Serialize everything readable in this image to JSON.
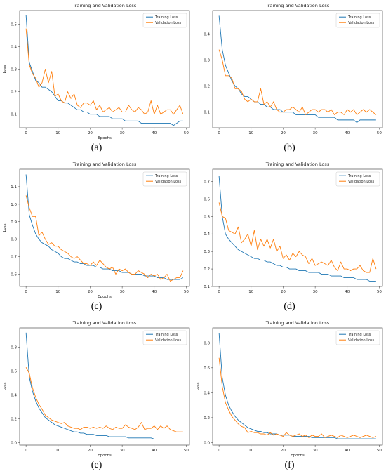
{
  "chart_data": [
    {
      "type": "line",
      "caption": "(a)",
      "title": "Training and Validation Loss",
      "xlabel": "Epochs",
      "ylabel": "Loss",
      "xlim": [
        -2,
        51
      ],
      "ylim": [
        0.04,
        0.56
      ],
      "xticks": [
        0,
        10,
        20,
        30,
        40,
        50
      ],
      "yticks": [
        0.1,
        0.2,
        0.3,
        0.4,
        0.5
      ],
      "ytick_labels": [
        "0.1",
        "0.2",
        "0.3",
        "0.4",
        "0.5"
      ],
      "legend": "top-right",
      "x": [
        0,
        1,
        2,
        3,
        4,
        5,
        6,
        7,
        8,
        9,
        10,
        11,
        12,
        13,
        14,
        15,
        16,
        17,
        18,
        19,
        20,
        21,
        22,
        23,
        24,
        25,
        26,
        27,
        28,
        29,
        30,
        31,
        32,
        33,
        34,
        35,
        36,
        37,
        38,
        39,
        40,
        41,
        42,
        43,
        44,
        45,
        46,
        47,
        48,
        49
      ],
      "series": [
        {
          "name": "Training Loss",
          "color": "#1f77b4",
          "values": [
            0.54,
            0.33,
            0.29,
            0.25,
            0.24,
            0.22,
            0.22,
            0.21,
            0.2,
            0.18,
            0.16,
            0.16,
            0.15,
            0.15,
            0.14,
            0.13,
            0.12,
            0.12,
            0.11,
            0.11,
            0.1,
            0.1,
            0.1,
            0.09,
            0.09,
            0.09,
            0.09,
            0.08,
            0.08,
            0.08,
            0.08,
            0.07,
            0.07,
            0.07,
            0.07,
            0.07,
            0.06,
            0.06,
            0.06,
            0.06,
            0.06,
            0.06,
            0.06,
            0.06,
            0.06,
            0.06,
            0.05,
            0.06,
            0.07,
            0.07
          ]
        },
        {
          "name": "Validation Loss",
          "color": "#ff7f0e",
          "values": [
            0.48,
            0.32,
            0.28,
            0.26,
            0.22,
            0.24,
            0.3,
            0.24,
            0.29,
            0.18,
            0.19,
            0.16,
            0.15,
            0.2,
            0.17,
            0.19,
            0.14,
            0.13,
            0.15,
            0.15,
            0.14,
            0.16,
            0.12,
            0.14,
            0.11,
            0.12,
            0.13,
            0.11,
            0.12,
            0.13,
            0.11,
            0.11,
            0.14,
            0.12,
            0.11,
            0.13,
            0.12,
            0.1,
            0.11,
            0.16,
            0.1,
            0.14,
            0.1,
            0.11,
            0.12,
            0.12,
            0.1,
            0.12,
            0.14,
            0.1
          ]
        }
      ]
    },
    {
      "type": "line",
      "caption": "(b)",
      "title": "Training and Validation Loss",
      "xlabel": "",
      "ylabel": "",
      "xlim": [
        -2,
        51
      ],
      "ylim": [
        0.04,
        0.49
      ],
      "xticks": [
        0,
        10,
        20,
        30,
        40,
        50
      ],
      "yticks": [
        0.1,
        0.2,
        0.3,
        0.4
      ],
      "ytick_labels": [
        "0.1",
        "0.2",
        "0.3",
        "0.4"
      ],
      "legend": "top-right",
      "x": [
        0,
        1,
        2,
        3,
        4,
        5,
        6,
        7,
        8,
        9,
        10,
        11,
        12,
        13,
        14,
        15,
        16,
        17,
        18,
        19,
        20,
        21,
        22,
        23,
        24,
        25,
        26,
        27,
        28,
        29,
        30,
        31,
        32,
        33,
        34,
        35,
        36,
        37,
        38,
        39,
        40,
        41,
        42,
        43,
        44,
        45,
        46,
        47,
        48,
        49
      ],
      "series": [
        {
          "name": "Training Loss",
          "color": "#1f77b4",
          "values": [
            0.47,
            0.34,
            0.28,
            0.25,
            0.22,
            0.2,
            0.19,
            0.17,
            0.16,
            0.16,
            0.15,
            0.14,
            0.14,
            0.13,
            0.13,
            0.12,
            0.12,
            0.11,
            0.11,
            0.11,
            0.1,
            0.1,
            0.1,
            0.1,
            0.09,
            0.09,
            0.09,
            0.09,
            0.09,
            0.09,
            0.09,
            0.08,
            0.08,
            0.08,
            0.08,
            0.08,
            0.08,
            0.07,
            0.07,
            0.07,
            0.07,
            0.07,
            0.07,
            0.06,
            0.07,
            0.07,
            0.07,
            0.07,
            0.07,
            0.07
          ]
        },
        {
          "name": "Validation Loss",
          "color": "#ff7f0e",
          "values": [
            0.34,
            0.3,
            0.24,
            0.24,
            0.23,
            0.19,
            0.19,
            0.18,
            0.15,
            0.14,
            0.15,
            0.14,
            0.14,
            0.19,
            0.13,
            0.14,
            0.12,
            0.14,
            0.11,
            0.1,
            0.1,
            0.11,
            0.11,
            0.12,
            0.11,
            0.1,
            0.12,
            0.09,
            0.1,
            0.11,
            0.11,
            0.1,
            0.11,
            0.11,
            0.1,
            0.11,
            0.09,
            0.1,
            0.1,
            0.09,
            0.11,
            0.1,
            0.11,
            0.09,
            0.1,
            0.11,
            0.1,
            0.11,
            0.1,
            0.09
          ]
        }
      ]
    },
    {
      "type": "line",
      "caption": "(c)",
      "title": "Training and Validation Loss",
      "xlabel": "Epochs",
      "ylabel": "Loss",
      "xlim": [
        -2,
        51
      ],
      "ylim": [
        0.53,
        1.2
      ],
      "xticks": [
        0,
        10,
        20,
        30,
        40,
        50
      ],
      "yticks": [
        0.6,
        0.7,
        0.8,
        0.9,
        1.0,
        1.1
      ],
      "ytick_labels": [
        "0.6",
        "0.7",
        "0.8",
        "0.9",
        "1.0",
        "1.1"
      ],
      "legend": "top-right",
      "x": [
        0,
        1,
        2,
        3,
        4,
        5,
        6,
        7,
        8,
        9,
        10,
        11,
        12,
        13,
        14,
        15,
        16,
        17,
        18,
        19,
        20,
        21,
        22,
        23,
        24,
        25,
        26,
        27,
        28,
        29,
        30,
        31,
        32,
        33,
        34,
        35,
        36,
        37,
        38,
        39,
        40,
        41,
        42,
        43,
        44,
        45,
        46,
        47,
        48,
        49
      ],
      "series": [
        {
          "name": "Training Loss",
          "color": "#1f77b4",
          "values": [
            1.17,
            0.94,
            0.88,
            0.83,
            0.8,
            0.78,
            0.77,
            0.76,
            0.74,
            0.73,
            0.72,
            0.7,
            0.69,
            0.69,
            0.68,
            0.67,
            0.67,
            0.66,
            0.66,
            0.65,
            0.65,
            0.65,
            0.64,
            0.64,
            0.63,
            0.63,
            0.63,
            0.62,
            0.62,
            0.62,
            0.61,
            0.61,
            0.61,
            0.6,
            0.6,
            0.6,
            0.6,
            0.59,
            0.59,
            0.59,
            0.59,
            0.58,
            0.58,
            0.58,
            0.57,
            0.57,
            0.57,
            0.57,
            0.57,
            0.58
          ]
        },
        {
          "name": "Validation Loss",
          "color": "#ff7f0e",
          "values": [
            1.05,
            0.98,
            0.93,
            0.93,
            0.82,
            0.84,
            0.8,
            0.77,
            0.78,
            0.76,
            0.76,
            0.74,
            0.73,
            0.72,
            0.7,
            0.69,
            0.7,
            0.68,
            0.66,
            0.66,
            0.65,
            0.67,
            0.65,
            0.68,
            0.66,
            0.64,
            0.63,
            0.64,
            0.6,
            0.63,
            0.62,
            0.63,
            0.61,
            0.6,
            0.6,
            0.62,
            0.61,
            0.6,
            0.58,
            0.6,
            0.59,
            0.6,
            0.57,
            0.58,
            0.6,
            0.56,
            0.57,
            0.58,
            0.58,
            0.62
          ]
        }
      ]
    },
    {
      "type": "line",
      "caption": "(d)",
      "title": "Training and Validation Loss",
      "xlabel": "",
      "ylabel": "",
      "xlim": [
        -2,
        51
      ],
      "ylim": [
        0.1,
        0.77
      ],
      "xticks": [
        0,
        10,
        20,
        30,
        40,
        50
      ],
      "yticks": [
        0.1,
        0.2,
        0.3,
        0.4,
        0.5,
        0.6,
        0.7
      ],
      "ytick_labels": [
        "0.1",
        "0.2",
        "0.3",
        "0.4",
        "0.5",
        "0.6",
        "0.7"
      ],
      "legend": "top-right",
      "x": [
        0,
        1,
        2,
        3,
        4,
        5,
        6,
        7,
        8,
        9,
        10,
        11,
        12,
        13,
        14,
        15,
        16,
        17,
        18,
        19,
        20,
        21,
        22,
        23,
        24,
        25,
        26,
        27,
        28,
        29,
        30,
        31,
        32,
        33,
        34,
        35,
        36,
        37,
        38,
        39,
        40,
        41,
        42,
        43,
        44,
        45,
        46,
        47,
        48,
        49
      ],
      "series": [
        {
          "name": "Training Loss",
          "color": "#1f77b4",
          "values": [
            0.73,
            0.5,
            0.4,
            0.37,
            0.35,
            0.33,
            0.31,
            0.3,
            0.29,
            0.28,
            0.27,
            0.26,
            0.26,
            0.25,
            0.25,
            0.24,
            0.24,
            0.23,
            0.22,
            0.22,
            0.21,
            0.21,
            0.2,
            0.2,
            0.2,
            0.19,
            0.19,
            0.19,
            0.18,
            0.18,
            0.18,
            0.18,
            0.17,
            0.17,
            0.17,
            0.16,
            0.16,
            0.16,
            0.16,
            0.15,
            0.15,
            0.15,
            0.15,
            0.14,
            0.14,
            0.14,
            0.14,
            0.13,
            0.13,
            0.13
          ]
        },
        {
          "name": "Validation Loss",
          "color": "#ff7f0e",
          "values": [
            0.58,
            0.5,
            0.49,
            0.42,
            0.41,
            0.4,
            0.44,
            0.35,
            0.37,
            0.4,
            0.33,
            0.42,
            0.31,
            0.37,
            0.33,
            0.37,
            0.32,
            0.37,
            0.3,
            0.33,
            0.26,
            0.28,
            0.25,
            0.29,
            0.27,
            0.3,
            0.28,
            0.27,
            0.23,
            0.26,
            0.22,
            0.23,
            0.24,
            0.23,
            0.22,
            0.25,
            0.21,
            0.19,
            0.24,
            0.2,
            0.2,
            0.19,
            0.2,
            0.2,
            0.22,
            0.19,
            0.18,
            0.18,
            0.26,
            0.2
          ]
        }
      ]
    },
    {
      "type": "line",
      "caption": "(e)",
      "title": "Training and Validation Loss",
      "xlabel": "Epochs",
      "ylabel": "Loss",
      "xlim": [
        -2,
        51
      ],
      "ylim": [
        -0.02,
        0.96
      ],
      "xticks": [
        0,
        10,
        20,
        30,
        40,
        50
      ],
      "yticks": [
        0.0,
        0.2,
        0.4,
        0.6,
        0.8
      ],
      "ytick_labels": [
        "0.0",
        "0.2",
        "0.4",
        "0.6",
        "0.8"
      ],
      "legend": "top-right",
      "x": [
        0,
        1,
        2,
        3,
        4,
        5,
        6,
        7,
        8,
        9,
        10,
        11,
        12,
        13,
        14,
        15,
        16,
        17,
        18,
        19,
        20,
        21,
        22,
        23,
        24,
        25,
        26,
        27,
        28,
        29,
        30,
        31,
        32,
        33,
        34,
        35,
        36,
        37,
        38,
        39,
        40,
        41,
        42,
        43,
        44,
        45,
        46,
        47,
        48,
        49
      ],
      "series": [
        {
          "name": "Training Loss",
          "color": "#1f77b4",
          "values": [
            0.92,
            0.55,
            0.43,
            0.35,
            0.29,
            0.25,
            0.21,
            0.19,
            0.17,
            0.15,
            0.14,
            0.13,
            0.12,
            0.11,
            0.1,
            0.09,
            0.09,
            0.08,
            0.08,
            0.07,
            0.07,
            0.07,
            0.06,
            0.06,
            0.06,
            0.06,
            0.05,
            0.05,
            0.05,
            0.05,
            0.05,
            0.05,
            0.04,
            0.04,
            0.04,
            0.04,
            0.04,
            0.04,
            0.04,
            0.04,
            0.03,
            0.03,
            0.03,
            0.03,
            0.03,
            0.03,
            0.03,
            0.03,
            0.03,
            0.03
          ]
        },
        {
          "name": "Validation Loss",
          "color": "#ff7f0e",
          "values": [
            0.63,
            0.58,
            0.46,
            0.38,
            0.32,
            0.28,
            0.23,
            0.21,
            0.19,
            0.18,
            0.17,
            0.16,
            0.17,
            0.14,
            0.13,
            0.12,
            0.12,
            0.11,
            0.13,
            0.13,
            0.12,
            0.13,
            0.12,
            0.13,
            0.12,
            0.14,
            0.12,
            0.11,
            0.13,
            0.12,
            0.12,
            0.15,
            0.13,
            0.12,
            0.11,
            0.13,
            0.17,
            0.11,
            0.12,
            0.12,
            0.14,
            0.11,
            0.14,
            0.12,
            0.14,
            0.11,
            0.1,
            0.09,
            0.09,
            0.09
          ]
        }
      ]
    },
    {
      "type": "line",
      "caption": "(f)",
      "title": "Training and Validation Loss",
      "xlabel": "Epochs",
      "ylabel": "Loss",
      "xlim": [
        -2,
        51
      ],
      "ylim": [
        -0.02,
        0.92
      ],
      "xticks": [
        0,
        10,
        20,
        30,
        40,
        50
      ],
      "yticks": [
        0.0,
        0.2,
        0.4,
        0.6,
        0.8
      ],
      "ytick_labels": [
        "0.0",
        "0.2",
        "0.4",
        "0.6",
        "0.8"
      ],
      "legend": "top-right",
      "x": [
        0,
        1,
        2,
        3,
        4,
        5,
        6,
        7,
        8,
        9,
        10,
        11,
        12,
        13,
        14,
        15,
        16,
        17,
        18,
        19,
        20,
        21,
        22,
        23,
        24,
        25,
        26,
        27,
        28,
        29,
        30,
        31,
        32,
        33,
        34,
        35,
        36,
        37,
        38,
        39,
        40,
        41,
        42,
        43,
        44,
        45,
        46,
        47,
        48,
        49
      ],
      "series": [
        {
          "name": "Training Loss",
          "color": "#1f77b4",
          "values": [
            0.88,
            0.52,
            0.38,
            0.3,
            0.25,
            0.21,
            0.18,
            0.16,
            0.14,
            0.12,
            0.11,
            0.1,
            0.09,
            0.09,
            0.08,
            0.08,
            0.07,
            0.07,
            0.07,
            0.06,
            0.06,
            0.06,
            0.06,
            0.05,
            0.05,
            0.05,
            0.05,
            0.05,
            0.05,
            0.04,
            0.04,
            0.04,
            0.04,
            0.04,
            0.04,
            0.04,
            0.04,
            0.03,
            0.03,
            0.03,
            0.03,
            0.03,
            0.03,
            0.03,
            0.03,
            0.03,
            0.03,
            0.03,
            0.03,
            0.03
          ]
        },
        {
          "name": "Validation Loss",
          "color": "#ff7f0e",
          "values": [
            0.68,
            0.45,
            0.32,
            0.26,
            0.21,
            0.18,
            0.15,
            0.13,
            0.12,
            0.08,
            0.09,
            0.08,
            0.08,
            0.07,
            0.07,
            0.06,
            0.08,
            0.06,
            0.07,
            0.06,
            0.05,
            0.08,
            0.06,
            0.05,
            0.06,
            0.07,
            0.05,
            0.06,
            0.04,
            0.06,
            0.05,
            0.05,
            0.07,
            0.04,
            0.05,
            0.06,
            0.05,
            0.04,
            0.06,
            0.05,
            0.04,
            0.05,
            0.06,
            0.05,
            0.04,
            0.05,
            0.06,
            0.05,
            0.04,
            0.05
          ]
        }
      ]
    }
  ]
}
